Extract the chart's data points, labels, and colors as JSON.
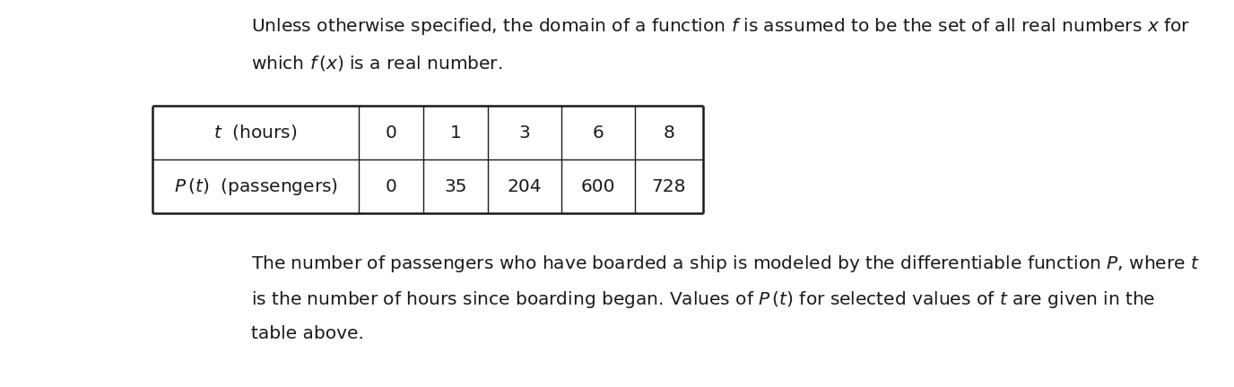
{
  "background_color": "#ffffff",
  "top_text_line1": "Unless otherwise specified, the domain of a function $f$ is assumed to be the set of all real numbers $x$ for",
  "top_text_line2": "which $f\\,(x)$ is a real number.",
  "bottom_text_line1": "The number of passengers who have boarded a ship is modeled by the differentiable function $P$, where $t$",
  "bottom_text_line2": "is the number of hours since boarding began. Values of $P\\,(t)$ for selected values of $t$ are given in the",
  "bottom_text_line3": "table above.",
  "table_row1_label": "$t$  (hours)",
  "table_row2_label": "$P\\,(t)$  (passengers)",
  "t_values": [
    "0",
    "1",
    "3",
    "6",
    "8"
  ],
  "P_values": [
    "0",
    "35",
    "204",
    "600",
    "728"
  ],
  "font_size": 14.5,
  "table_font_size": 14.5,
  "text_color": "#1a1a1a"
}
